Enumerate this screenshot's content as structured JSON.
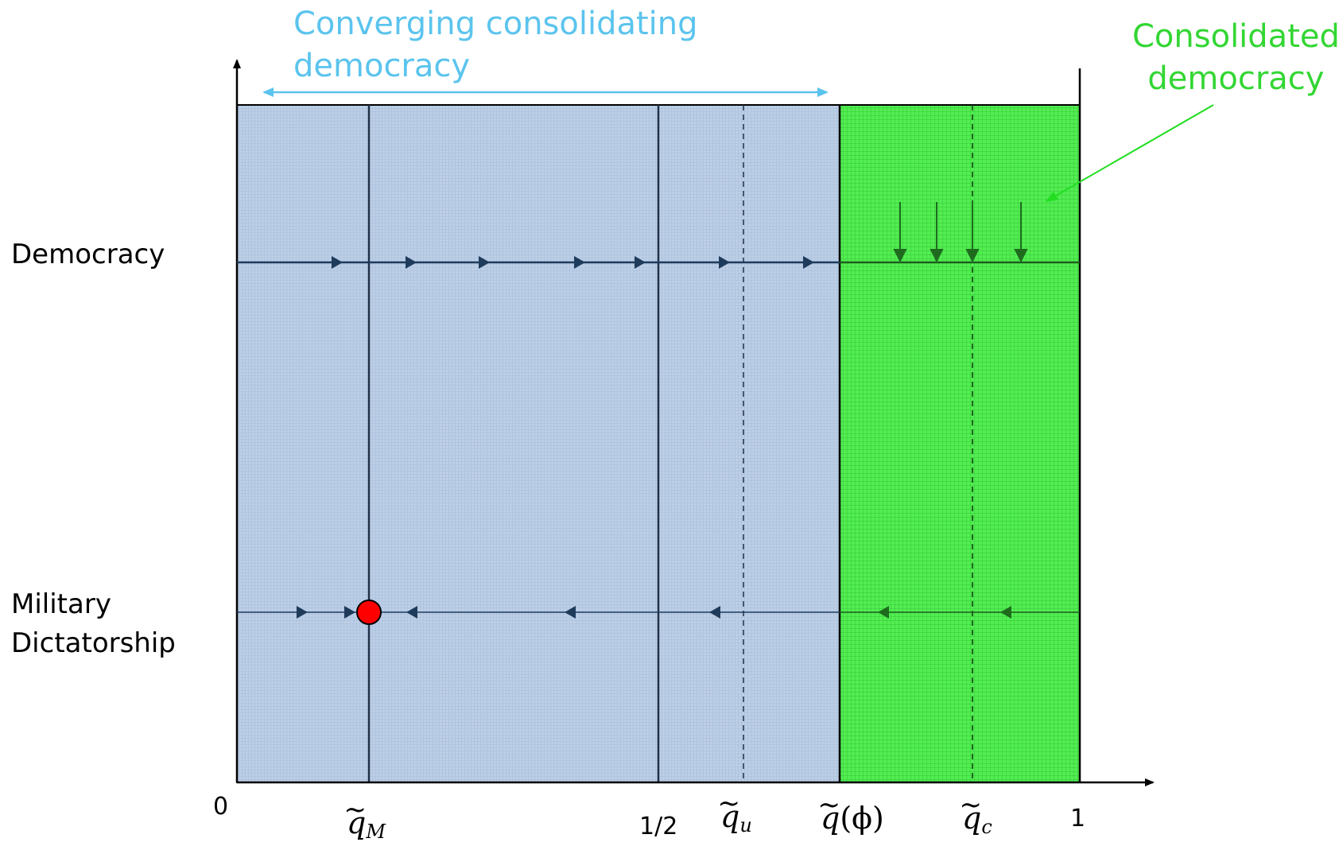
{
  "annotations": {
    "converging": "Converging consolidating democracy",
    "converging_line1": "Converging consolidating",
    "converging_line2": "democracy",
    "consolidated_line1": "Consolidated",
    "consolidated_line2": "democracy"
  },
  "states": {
    "democracy": "Democracy",
    "military_line1": "Military",
    "military_line2": "Dictatorship"
  },
  "axis": {
    "zero": "0",
    "half": "1/2",
    "one": "1",
    "q_M": "q",
    "q_M_sub": "M",
    "q_u": "q",
    "q_u_sub": "u",
    "q_phi": "q",
    "q_phi_arg": "(ϕ)",
    "q_c": "q",
    "q_c_sub": "c"
  },
  "colors": {
    "converging_region": "#b9cde6",
    "consolidated_region": "#4df04d",
    "converging_annotation": "#5bc4ee",
    "consolidated_annotation": "#33d633",
    "steady_state": "#ff0000",
    "dark_arrows": "#1f3b5c",
    "green_arrows": "#1e7a1e"
  },
  "dynamics": {
    "democracy_row": "rightward drift in the converging region; downward collapse into the consolidated-democracy row in the green region",
    "dictatorship_row": "arrows converge on the steady state at q_M",
    "steady_state": "q_M"
  }
}
